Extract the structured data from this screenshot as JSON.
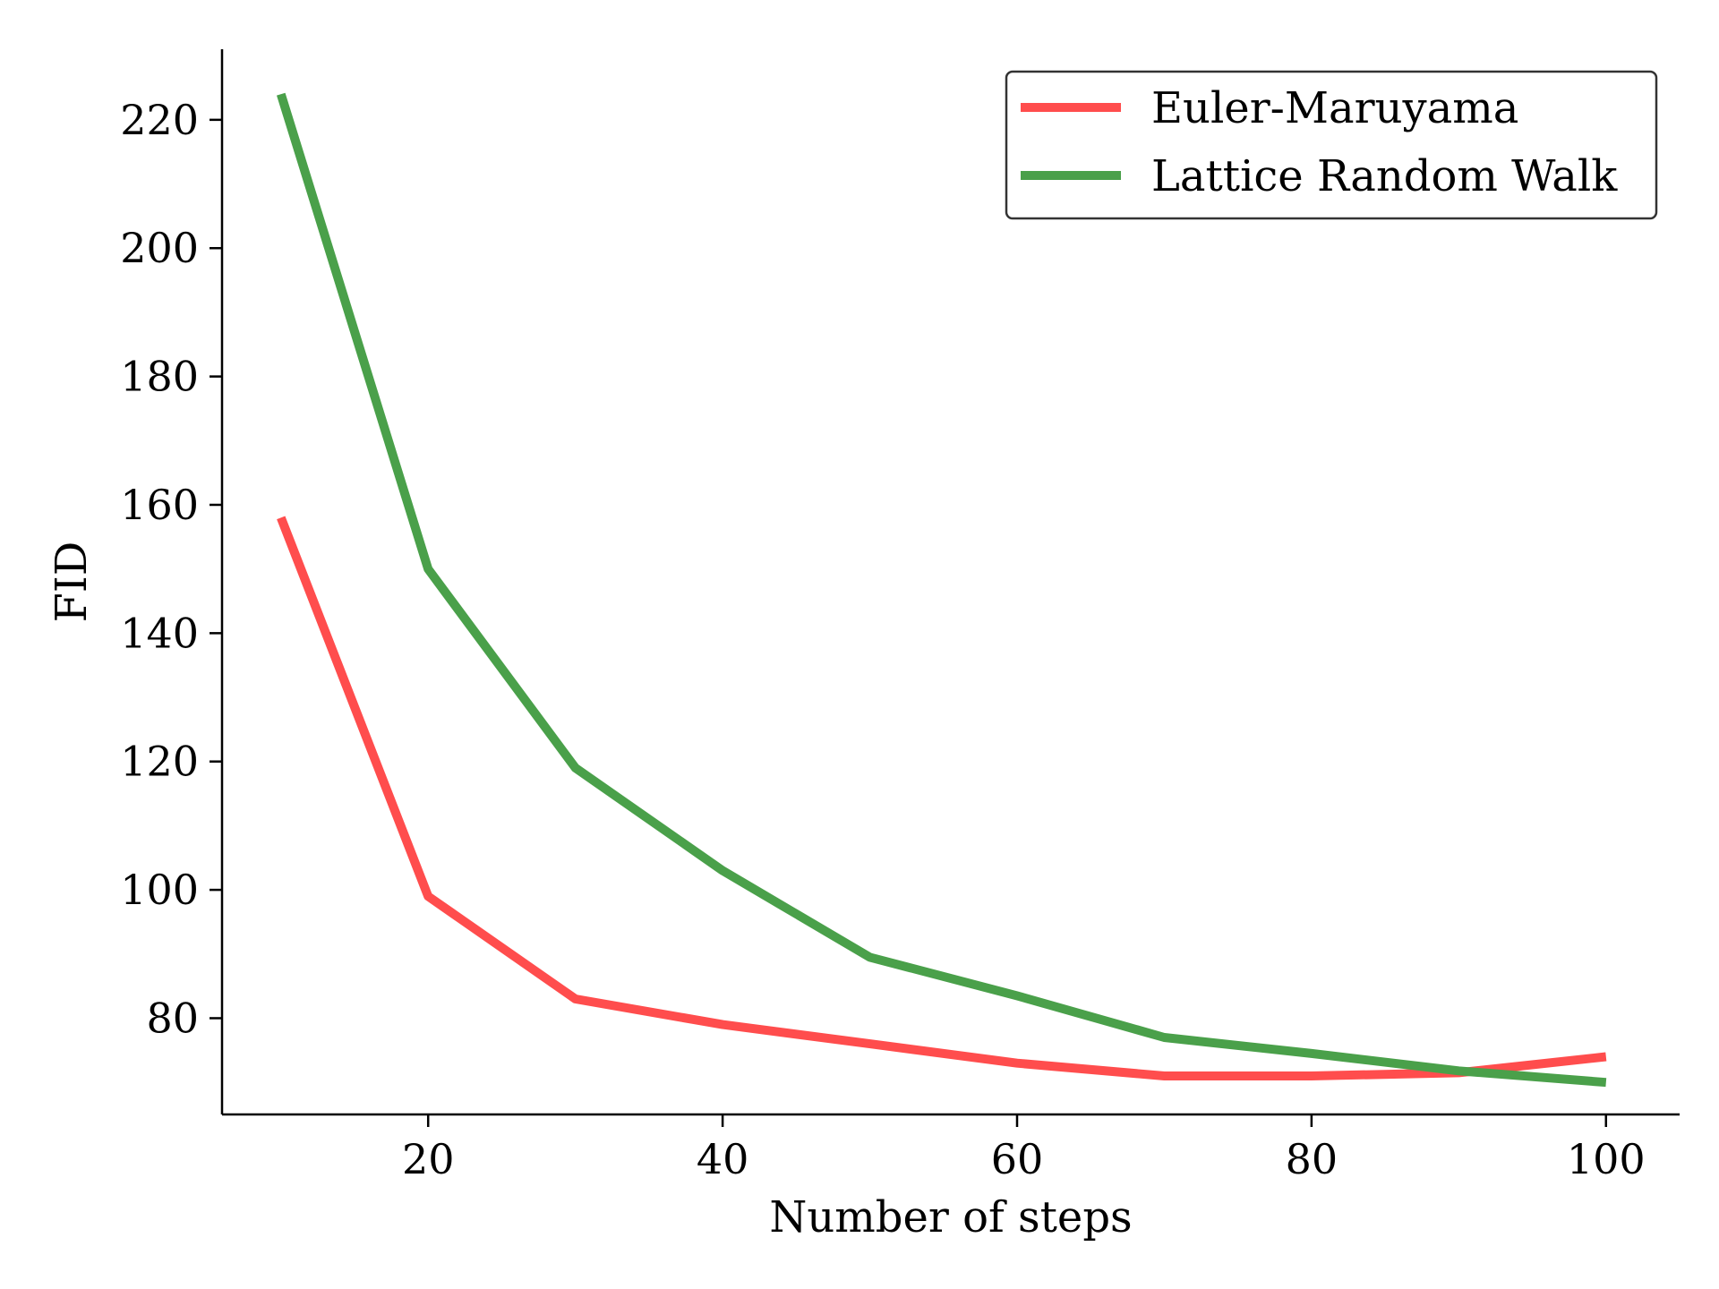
{
  "chart_data": {
    "type": "line",
    "title": "",
    "xlabel": "Number of steps",
    "ylabel": "FID",
    "xlim": [
      6,
      105
    ],
    "ylim": [
      65,
      231
    ],
    "x_ticks": [
      20,
      40,
      60,
      80,
      100
    ],
    "y_ticks": [
      80,
      100,
      120,
      140,
      160,
      180,
      200,
      220
    ],
    "x_tick_labels": [
      "20",
      "40",
      "60",
      "80",
      "100"
    ],
    "y_tick_labels": [
      "80",
      "100",
      "120",
      "140",
      "160",
      "180",
      "200",
      "220"
    ],
    "x": [
      10,
      20,
      30,
      40,
      50,
      60,
      70,
      80,
      90,
      100
    ],
    "series": [
      {
        "name": "Euler-Maruyama",
        "color": "#ff4d4d",
        "values": [
          158,
          99,
          83,
          79,
          76,
          73,
          71,
          71,
          71.5,
          74
        ]
      },
      {
        "name": "Lattice Random Walk",
        "color": "#4aa04a",
        "values": [
          224,
          150,
          119,
          103,
          89.5,
          83.5,
          77,
          74.5,
          71.8,
          70
        ]
      }
    ],
    "grid": false,
    "legend_position": "top-right",
    "spines": [
      "left",
      "bottom"
    ]
  }
}
